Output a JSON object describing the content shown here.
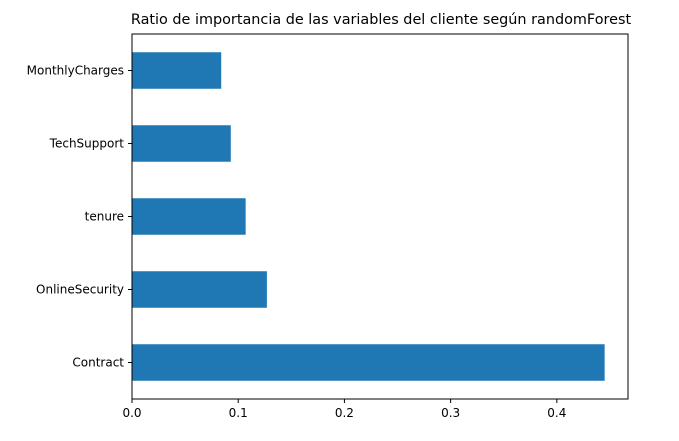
{
  "chart_data": {
    "type": "bar",
    "orientation": "horizontal",
    "title": "Ratio de importancia de las variables del cliente según randomForest",
    "xlabel": "",
    "ylabel": "",
    "categories": [
      "Contract",
      "OnlineSecurity",
      "tenure",
      "TechSupport",
      "MonthlyCharges"
    ],
    "values": [
      0.445,
      0.127,
      0.107,
      0.093,
      0.084
    ],
    "xlim": [
      0,
      0.467
    ],
    "xticks": [
      0.0,
      0.1,
      0.2,
      0.3,
      0.4
    ],
    "xtick_labels": [
      "0.0",
      "0.1",
      "0.2",
      "0.3",
      "0.4"
    ],
    "grid": false,
    "legend": "none",
    "bar_color": "#1f77b4"
  }
}
